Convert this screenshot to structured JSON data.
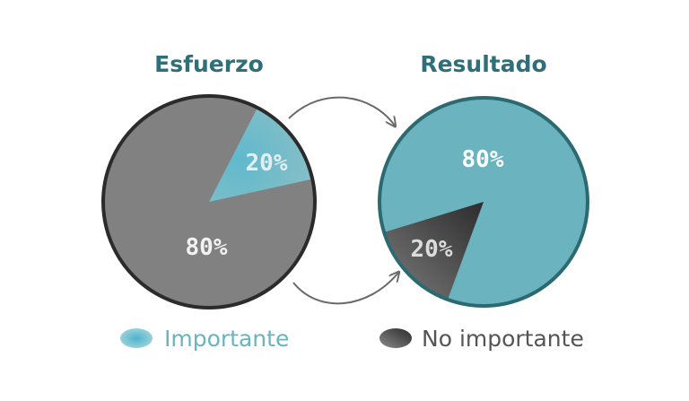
{
  "chart_data": [
    {
      "type": "pie",
      "title": "Esfuerzo",
      "slices": [
        {
          "category": "Importante",
          "value": 20,
          "label": "20%"
        },
        {
          "category": "No importante",
          "value": 80,
          "label": "80%"
        }
      ]
    },
    {
      "type": "pie",
      "title": "Resultado",
      "slices": [
        {
          "category": "Importante",
          "value": 80,
          "label": "80%"
        },
        {
          "category": "No importante",
          "value": 20,
          "label": "20%"
        }
      ]
    }
  ],
  "legend": [
    {
      "category": "Importante",
      "label": "Importante",
      "color": "#6bb3bf"
    },
    {
      "category": "No importante",
      "label": "No importante",
      "color": "#555555"
    }
  ],
  "colors": {
    "title": "#2f6f78",
    "importante": "#6bb3bf",
    "no_importante_esfuerzo": "#818181",
    "no_importante_resultado": "#454545",
    "outline_esfuerzo": "#2b2b2b",
    "outline_resultado": "#2c6a72",
    "arrow": "#6a6a6a"
  }
}
